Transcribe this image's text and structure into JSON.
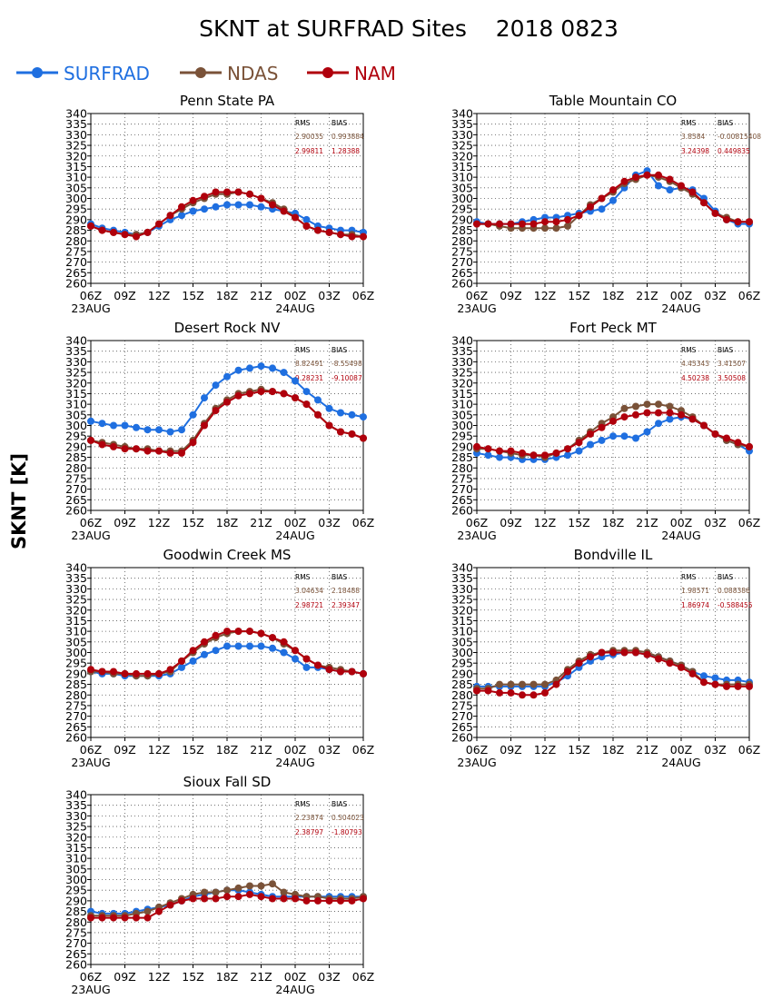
{
  "page": {
    "title": "SKNT at SURFRAD Sites    2018 0823",
    "ylabel": "SKNT [K]",
    "legend": [
      {
        "name": "SURFRAD",
        "color": "#1f6fe0"
      },
      {
        "name": "NDAS",
        "color": "#7a5238"
      },
      {
        "name": "NAM",
        "color": "#b0000c"
      }
    ],
    "stats_headers": [
      "RMS",
      "BIAS"
    ]
  },
  "chart_data": [
    {
      "type": "line",
      "title": "Penn State PA",
      "ylim": [
        260,
        340
      ],
      "yticks": [
        260,
        265,
        270,
        275,
        280,
        285,
        290,
        295,
        300,
        305,
        310,
        315,
        320,
        325,
        330,
        335,
        340
      ],
      "x_tick_labels": [
        "06Z",
        "09Z",
        "12Z",
        "15Z",
        "18Z",
        "21Z",
        "00Z",
        "03Z",
        "06Z"
      ],
      "date_labels": [
        "23AUG",
        "24AUG"
      ],
      "grid": true,
      "stats": [
        {
          "series": "NDAS",
          "rms": "2.90035",
          "bias": "0.993884"
        },
        {
          "series": "NAM",
          "rms": "2.99811",
          "bias": "1.28388"
        }
      ],
      "series": [
        {
          "name": "SURFRAD",
          "values": [
            288,
            286,
            285,
            284,
            283,
            284,
            287,
            290,
            292,
            294,
            295,
            296,
            297,
            297,
            297,
            296,
            295,
            294,
            293,
            290,
            287,
            286,
            285,
            285,
            284
          ]
        },
        {
          "name": "NDAS",
          "values": [
            287,
            285,
            284,
            283,
            283,
            284,
            288,
            292,
            295,
            298,
            300,
            302,
            302,
            303,
            302,
            300,
            298,
            295,
            291,
            287,
            285,
            284,
            283,
            283,
            282
          ]
        },
        {
          "name": "NAM",
          "values": [
            287,
            285,
            284,
            283,
            282,
            284,
            288,
            292,
            296,
            299,
            301,
            303,
            303,
            303,
            302,
            300,
            297,
            294,
            291,
            287,
            285,
            284,
            283,
            282,
            282
          ]
        }
      ]
    },
    {
      "type": "line",
      "title": "Table Mountain CO",
      "ylim": [
        260,
        340
      ],
      "yticks": [
        260,
        265,
        270,
        275,
        280,
        285,
        290,
        295,
        300,
        305,
        310,
        315,
        320,
        325,
        330,
        335,
        340
      ],
      "x_tick_labels": [
        "06Z",
        "09Z",
        "12Z",
        "15Z",
        "18Z",
        "21Z",
        "00Z",
        "03Z",
        "06Z"
      ],
      "date_labels": [
        "23AUG",
        "24AUG"
      ],
      "grid": true,
      "stats": [
        {
          "series": "NDAS",
          "rms": "3.8584",
          "bias": "-0.00815408"
        },
        {
          "series": "NAM",
          "rms": "3.24398",
          "bias": "0.449835"
        }
      ],
      "series": [
        {
          "name": "SURFRAD",
          "values": [
            289,
            288,
            288,
            288,
            289,
            290,
            291,
            291,
            292,
            293,
            294,
            295,
            299,
            305,
            311,
            313,
            306,
            304,
            305,
            304,
            300,
            294,
            290,
            288,
            288
          ]
        },
        {
          "name": "NDAS",
          "values": [
            288,
            288,
            287,
            286,
            286,
            286,
            286,
            286,
            287,
            292,
            297,
            300,
            303,
            307,
            309,
            311,
            310,
            308,
            305,
            302,
            298,
            293,
            291,
            289,
            289
          ]
        },
        {
          "name": "NAM",
          "values": [
            288,
            288,
            288,
            288,
            288,
            288,
            289,
            289,
            290,
            292,
            296,
            300,
            304,
            308,
            310,
            311,
            311,
            309,
            306,
            303,
            298,
            293,
            290,
            289,
            289
          ]
        }
      ]
    },
    {
      "type": "line",
      "title": "Desert Rock NV",
      "ylim": [
        260,
        340
      ],
      "yticks": [
        260,
        265,
        270,
        275,
        280,
        285,
        290,
        295,
        300,
        305,
        310,
        315,
        320,
        325,
        330,
        335,
        340
      ],
      "x_tick_labels": [
        "06Z",
        "09Z",
        "12Z",
        "15Z",
        "18Z",
        "21Z",
        "00Z",
        "03Z",
        "06Z"
      ],
      "date_labels": [
        "23AUG",
        "24AUG"
      ],
      "grid": true,
      "stats": [
        {
          "series": "NDAS",
          "rms": "8.82491",
          "bias": "-8.55498"
        },
        {
          "series": "NAM",
          "rms": "9.28231",
          "bias": "-9.10087"
        }
      ],
      "series": [
        {
          "name": "SURFRAD",
          "values": [
            302,
            301,
            300,
            300,
            299,
            298,
            298,
            297,
            298,
            305,
            313,
            319,
            323,
            326,
            327,
            328,
            327,
            325,
            321,
            316,
            312,
            308,
            306,
            305,
            304
          ]
        },
        {
          "name": "NDAS",
          "values": [
            293,
            292,
            291,
            290,
            289,
            289,
            288,
            288,
            288,
            293,
            301,
            308,
            312,
            315,
            316,
            317,
            316,
            315,
            313,
            310,
            305,
            300,
            297,
            296,
            294
          ]
        },
        {
          "name": "NAM",
          "values": [
            293,
            291,
            290,
            289,
            289,
            288,
            288,
            287,
            287,
            292,
            300,
            307,
            311,
            314,
            315,
            316,
            316,
            315,
            313,
            310,
            305,
            300,
            297,
            296,
            294
          ]
        }
      ]
    },
    {
      "type": "line",
      "title": "Fort Peck MT",
      "ylim": [
        260,
        340
      ],
      "yticks": [
        260,
        265,
        270,
        275,
        280,
        285,
        290,
        295,
        300,
        305,
        310,
        315,
        320,
        325,
        330,
        335,
        340
      ],
      "x_tick_labels": [
        "06Z",
        "09Z",
        "12Z",
        "15Z",
        "18Z",
        "21Z",
        "00Z",
        "03Z",
        "06Z"
      ],
      "date_labels": [
        "23AUG",
        "24AUG"
      ],
      "grid": true,
      "stats": [
        {
          "series": "NDAS",
          "rms": "4.45343",
          "bias": "3.41507"
        },
        {
          "series": "NAM",
          "rms": "4.50238",
          "bias": "3.50508"
        }
      ],
      "series": [
        {
          "name": "SURFRAD",
          "values": [
            287,
            286,
            285,
            285,
            284,
            284,
            284,
            285,
            286,
            288,
            291,
            293,
            295,
            295,
            294,
            297,
            301,
            303,
            304,
            303,
            300,
            296,
            293,
            291,
            288
          ]
        },
        {
          "name": "NDAS",
          "values": [
            289,
            289,
            288,
            287,
            286,
            286,
            285,
            287,
            289,
            293,
            297,
            301,
            304,
            308,
            309,
            310,
            310,
            309,
            307,
            304,
            300,
            296,
            293,
            291,
            290
          ]
        },
        {
          "name": "NAM",
          "values": [
            290,
            289,
            288,
            288,
            287,
            286,
            286,
            287,
            289,
            292,
            296,
            299,
            302,
            304,
            305,
            306,
            306,
            306,
            305,
            303,
            300,
            296,
            294,
            292,
            290
          ]
        }
      ]
    },
    {
      "type": "line",
      "title": "Goodwin Creek MS",
      "ylim": [
        260,
        340
      ],
      "yticks": [
        260,
        265,
        270,
        275,
        280,
        285,
        290,
        295,
        300,
        305,
        310,
        315,
        320,
        325,
        330,
        335,
        340
      ],
      "x_tick_labels": [
        "06Z",
        "09Z",
        "12Z",
        "15Z",
        "18Z",
        "21Z",
        "00Z",
        "03Z",
        "06Z"
      ],
      "date_labels": [
        "23AUG",
        "24AUG"
      ],
      "grid": true,
      "stats": [
        {
          "series": "NDAS",
          "rms": "3.04634",
          "bias": "2.18488"
        },
        {
          "series": "NAM",
          "rms": "2.98721",
          "bias": "2.39347"
        }
      ],
      "series": [
        {
          "name": "SURFRAD",
          "values": [
            291,
            290,
            290,
            289,
            289,
            289,
            289,
            290,
            293,
            296,
            299,
            301,
            303,
            303,
            303,
            303,
            302,
            300,
            297,
            293,
            293,
            292,
            291,
            291,
            290
          ]
        },
        {
          "name": "NDAS",
          "values": [
            291,
            291,
            290,
            290,
            289,
            289,
            290,
            291,
            296,
            300,
            304,
            307,
            309,
            310,
            310,
            309,
            307,
            304,
            301,
            297,
            294,
            293,
            292,
            291,
            290
          ]
        },
        {
          "name": "NAM",
          "values": [
            292,
            291,
            291,
            290,
            290,
            290,
            290,
            292,
            296,
            301,
            305,
            308,
            310,
            310,
            310,
            309,
            307,
            305,
            301,
            297,
            294,
            292,
            291,
            291,
            290
          ]
        }
      ]
    },
    {
      "type": "line",
      "title": "Bondville IL",
      "ylim": [
        260,
        340
      ],
      "yticks": [
        260,
        265,
        270,
        275,
        280,
        285,
        290,
        295,
        300,
        305,
        310,
        315,
        320,
        325,
        330,
        335,
        340
      ],
      "x_tick_labels": [
        "06Z",
        "09Z",
        "12Z",
        "15Z",
        "18Z",
        "21Z",
        "00Z",
        "03Z",
        "06Z"
      ],
      "date_labels": [
        "23AUG",
        "24AUG"
      ],
      "grid": true,
      "stats": [
        {
          "series": "NDAS",
          "rms": "1.98571",
          "bias": "0.088386"
        },
        {
          "series": "NAM",
          "rms": "1.86974",
          "bias": "-0.588455"
        }
      ],
      "series": [
        {
          "name": "SURFRAD",
          "values": [
            284,
            284,
            284,
            284,
            284,
            284,
            284,
            286,
            289,
            293,
            296,
            298,
            299,
            300,
            300,
            299,
            298,
            296,
            294,
            291,
            289,
            288,
            287,
            287,
            286
          ]
        },
        {
          "name": "NDAS",
          "values": [
            283,
            283,
            285,
            285,
            285,
            285,
            285,
            287,
            292,
            296,
            299,
            300,
            301,
            301,
            301,
            300,
            298,
            296,
            294,
            291,
            286,
            285,
            285,
            285,
            285
          ]
        },
        {
          "name": "NAM",
          "values": [
            282,
            282,
            281,
            281,
            280,
            280,
            281,
            285,
            291,
            295,
            298,
            300,
            300,
            300,
            300,
            299,
            297,
            295,
            293,
            290,
            286,
            285,
            284,
            284,
            284
          ]
        }
      ]
    },
    {
      "type": "line",
      "title": "Sioux Fall SD",
      "ylim": [
        260,
        340
      ],
      "yticks": [
        260,
        265,
        270,
        275,
        280,
        285,
        290,
        295,
        300,
        305,
        310,
        315,
        320,
        325,
        330,
        335,
        340
      ],
      "x_tick_labels": [
        "06Z",
        "09Z",
        "12Z",
        "15Z",
        "18Z",
        "21Z",
        "00Z",
        "03Z",
        "06Z"
      ],
      "date_labels": [
        "23AUG",
        "24AUG"
      ],
      "grid": true,
      "stats": [
        {
          "series": "NDAS",
          "rms": "2.23874",
          "bias": "0.504023"
        },
        {
          "series": "NAM",
          "rms": "2.38797",
          "bias": "-1.80793"
        }
      ],
      "series": [
        {
          "name": "SURFRAD",
          "values": [
            285,
            284,
            284,
            284,
            285,
            286,
            287,
            288,
            290,
            292,
            293,
            294,
            295,
            295,
            294,
            293,
            292,
            292,
            292,
            292,
            292,
            292,
            292,
            292,
            292
          ]
        },
        {
          "name": "NDAS",
          "values": [
            283,
            283,
            283,
            283,
            284,
            285,
            287,
            289,
            291,
            293,
            294,
            294,
            295,
            296,
            297,
            297,
            298,
            294,
            293,
            292,
            292,
            291,
            291,
            291,
            292
          ]
        },
        {
          "name": "NAM",
          "values": [
            282,
            282,
            282,
            282,
            282,
            282,
            285,
            288,
            290,
            291,
            291,
            291,
            292,
            292,
            293,
            292,
            291,
            291,
            291,
            290,
            290,
            290,
            290,
            290,
            291
          ]
        }
      ]
    }
  ]
}
